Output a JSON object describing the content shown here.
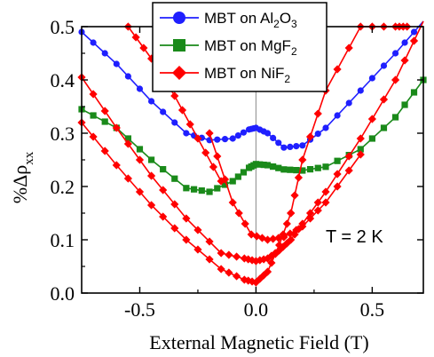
{
  "chart_data": {
    "type": "line",
    "xlabel": "External Magnetic Field (T)",
    "ylabel_prefix": "%Δρ",
    "ylabel_sub": "xx",
    "xlim": [
      -0.75,
      0.72
    ],
    "ylim": [
      0.0,
      0.5
    ],
    "xticks": [
      -0.5,
      0.0,
      0.5
    ],
    "xtick_labels": [
      "-0.5",
      "0.0",
      "0.5"
    ],
    "yticks": [
      0.0,
      0.1,
      0.2,
      0.3,
      0.4,
      0.5
    ],
    "ytick_labels": [
      "0.0",
      "0.1",
      "0.2",
      "0.3",
      "0.4",
      "0.5"
    ],
    "legend_position": "top-center",
    "annotation": "T = 2 K",
    "series": [
      {
        "name": "MBT on Al2O3",
        "legend_parts": [
          "MBT on Al",
          "2",
          "O",
          "3"
        ],
        "color": "#1f1fff",
        "marker": "circle",
        "branches": [
          {
            "x": [
              -0.75,
              -0.6,
              -0.45,
              -0.3,
              -0.2,
              -0.1,
              -0.03,
              0.0,
              0.05,
              0.12,
              0.2,
              0.3,
              0.45,
              0.6,
              0.72
            ],
            "y": [
              0.49,
              0.43,
              0.36,
              0.3,
              0.287,
              0.29,
              0.307,
              0.31,
              0.3,
              0.273,
              0.277,
              0.31,
              0.38,
              0.45,
              0.51
            ]
          }
        ]
      },
      {
        "name": "MBT on MgF2",
        "legend_parts": [
          "MBT on MgF",
          "2"
        ],
        "color": "#1a8a1a",
        "marker": "square",
        "branches": [
          {
            "x": [
              -0.75,
              -0.6,
              -0.45,
              -0.3,
              -0.2,
              -0.1,
              -0.03,
              0.0,
              0.05,
              0.12,
              0.2,
              0.3,
              0.45,
              0.6,
              0.72
            ],
            "y": [
              0.345,
              0.31,
              0.25,
              0.197,
              0.19,
              0.21,
              0.235,
              0.242,
              0.24,
              0.232,
              0.23,
              0.237,
              0.27,
              0.33,
              0.4
            ]
          }
        ]
      },
      {
        "name": "MBT on NiF2",
        "legend_parts": [
          "MBT on NiF",
          "2"
        ],
        "color": "#ff0000",
        "marker": "diamond",
        "branches": [
          {
            "x": [
              -0.75,
              -0.6,
              -0.45,
              -0.3,
              -0.15,
              -0.05,
              0.0,
              0.05,
              0.1,
              0.15,
              0.2,
              0.3,
              0.45,
              0.6,
              0.72
            ],
            "y": [
              0.405,
              0.31,
              0.22,
              0.14,
              0.075,
              0.065,
              0.06,
              0.065,
              0.08,
              0.1,
              0.13,
              0.19,
              0.29,
              0.4,
              0.51
            ]
          },
          {
            "x": [
              -0.75,
              -0.6,
              -0.45,
              -0.3,
              -0.15,
              -0.05,
              0.0,
              0.05,
              0.1,
              0.15
            ],
            "y": [
              0.32,
              0.24,
              0.165,
              0.1,
              0.045,
              0.025,
              0.02,
              0.04,
              0.09,
              0.15
            ]
          },
          {
            "x": [
              -0.2,
              -0.1,
              -0.02,
              0.05,
              0.12,
              0.2,
              0.3,
              0.45
            ],
            "y": [
              0.3,
              0.17,
              0.11,
              0.1,
              0.105,
              0.125,
              0.17,
              0.26
            ]
          },
          {
            "x": [
              -0.55,
              -0.45,
              -0.35,
              -0.25,
              -0.15
            ],
            "y": [
              0.5,
              0.44,
              0.37,
              0.29,
              0.21
            ]
          },
          {
            "x": [
              0.15,
              0.2,
              0.3,
              0.45,
              0.6,
              0.65
            ],
            "y": [
              0.15,
              0.25,
              0.38,
              0.5,
              0.5,
              0.5
            ]
          }
        ]
      }
    ]
  }
}
